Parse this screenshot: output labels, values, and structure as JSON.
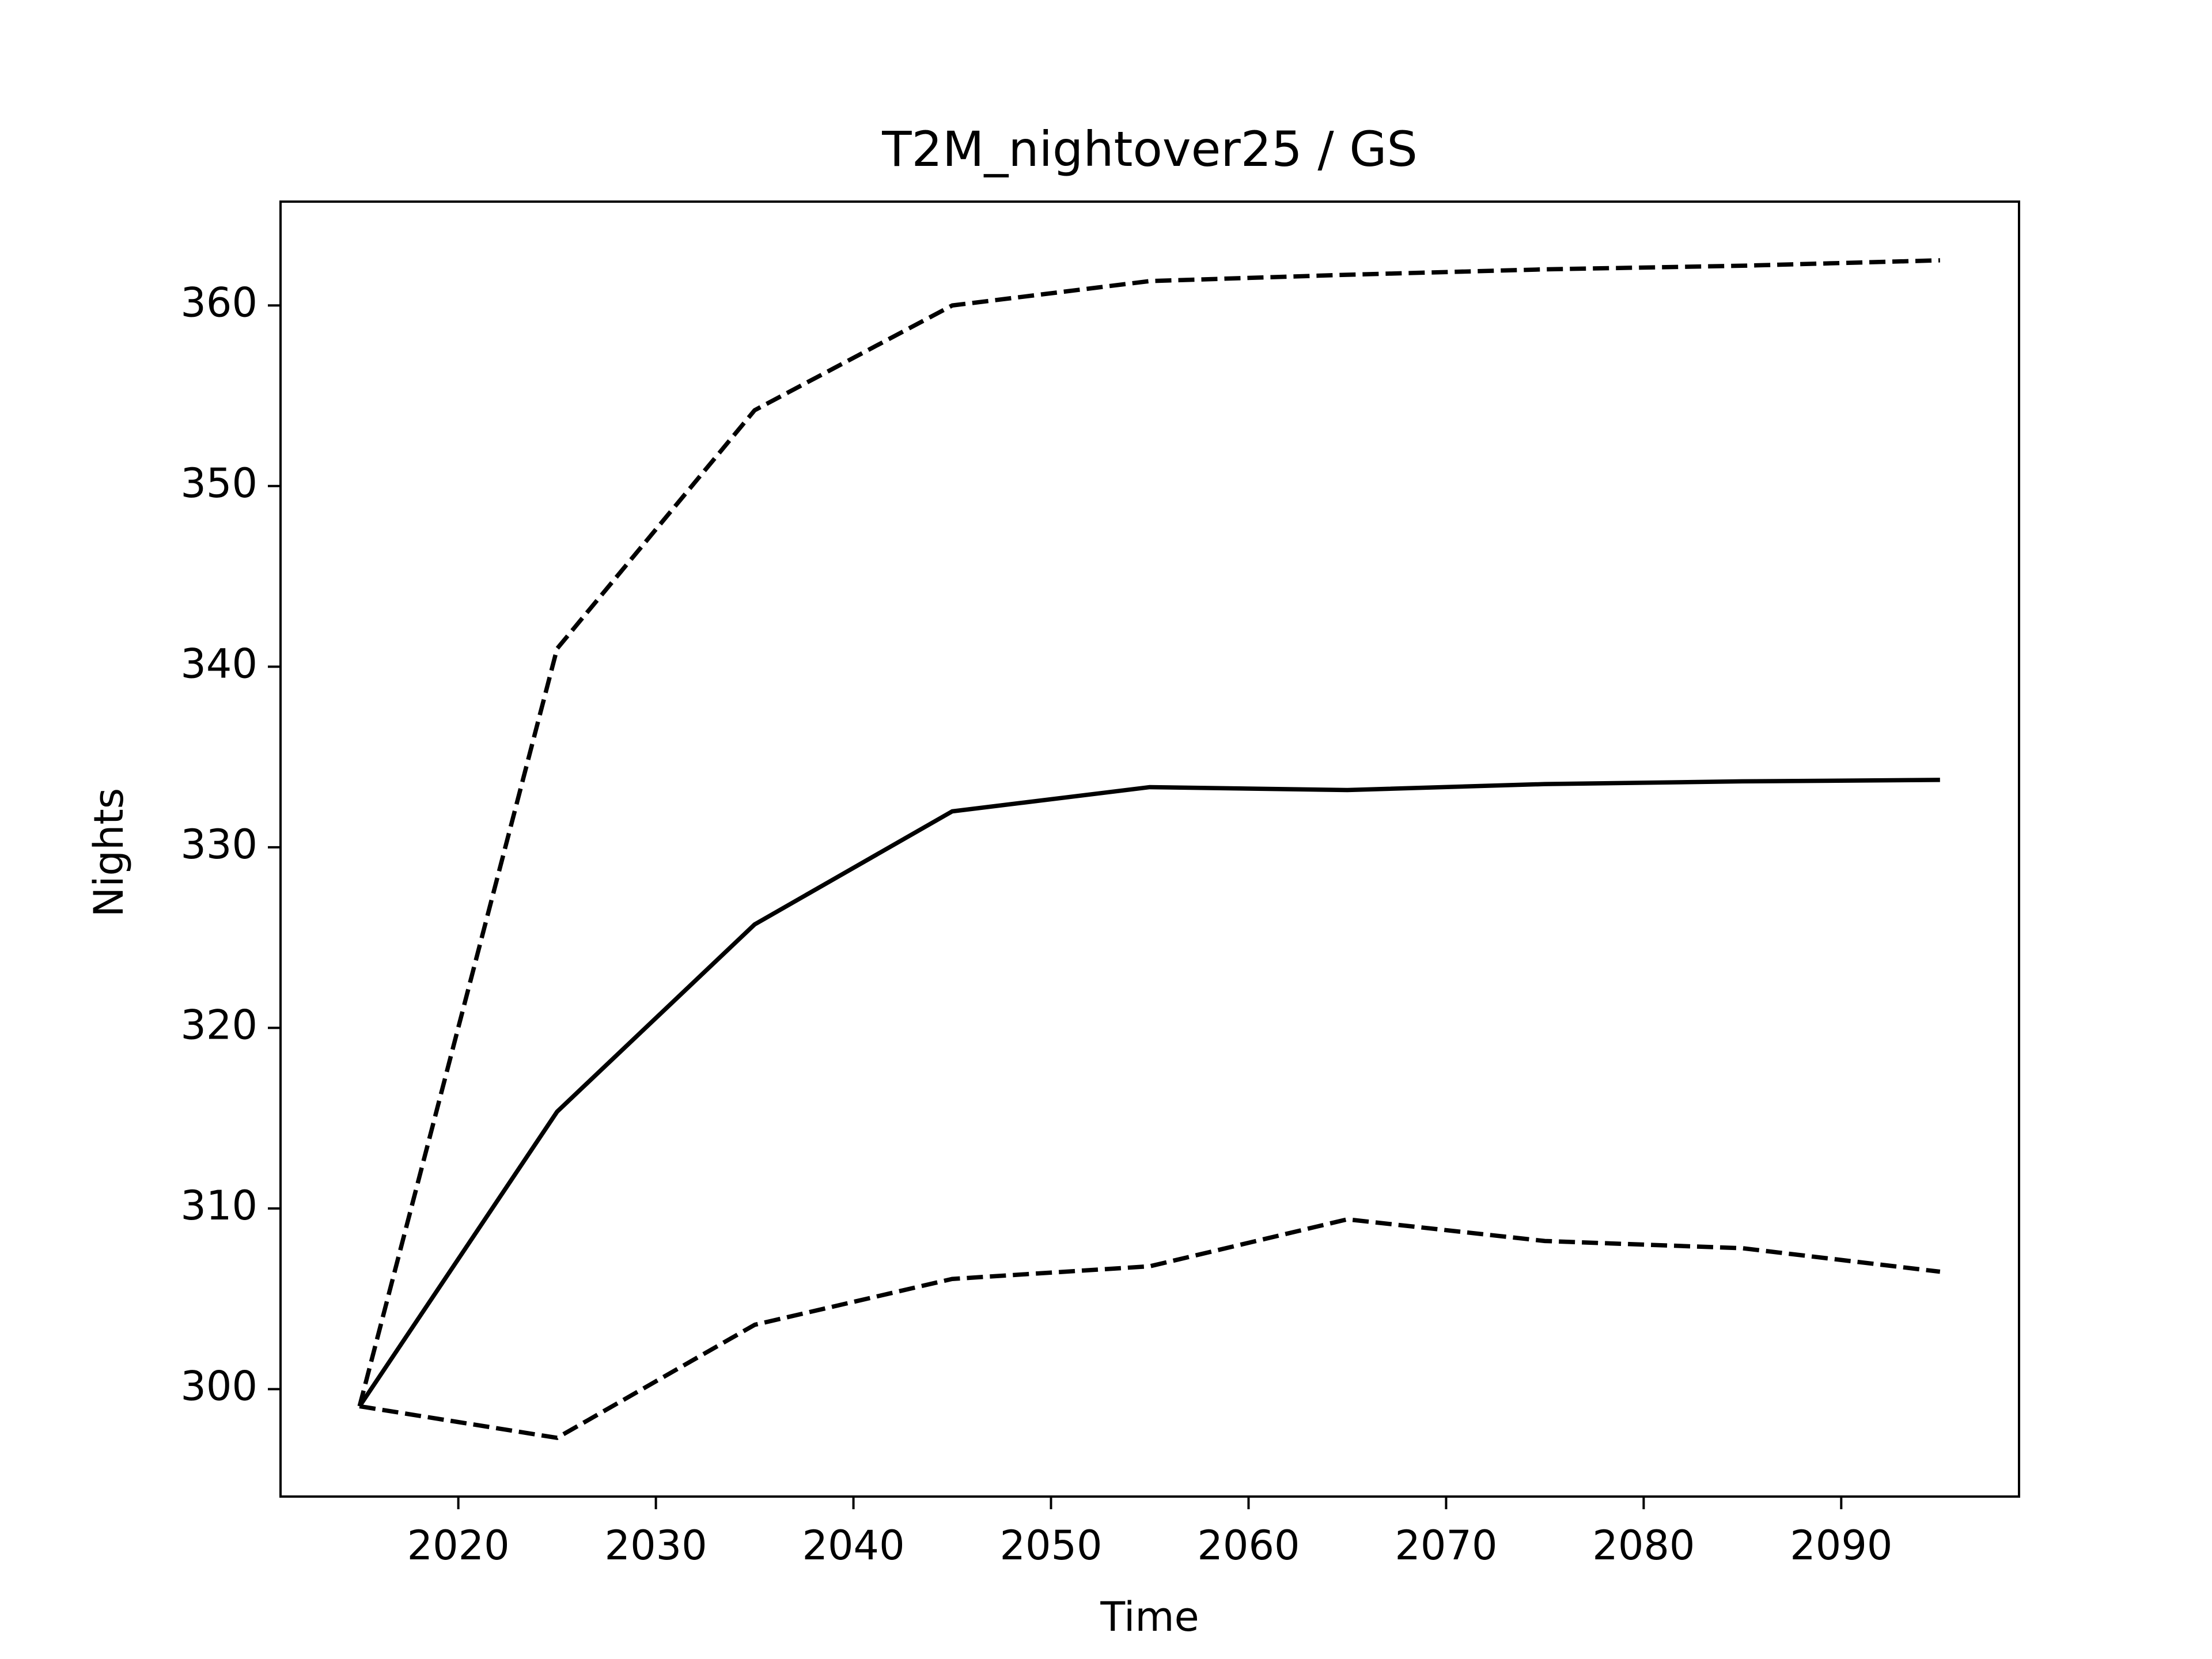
{
  "chart_data": {
    "type": "line",
    "title": "T2M_nightover25 / GS",
    "x_label": "Time",
    "y_label": "Nights",
    "x": [
      2015,
      2025,
      2035,
      2045,
      2055,
      2065,
      2075,
      2085,
      2095
    ],
    "series": [
      {
        "color": "#000000",
        "style": "dashed",
        "values": [
          299.05,
          341.0,
          354.2,
          360.0,
          361.35,
          361.7,
          362.0,
          362.2,
          362.5
        ]
      },
      {
        "color": "#000000",
        "style": "solid",
        "values": [
          299.05,
          315.36,
          325.73,
          331.99,
          333.33,
          333.17,
          333.5,
          333.65,
          333.73
        ]
      },
      {
        "color": "#000000",
        "style": "dashed",
        "values": [
          299.05,
          297.3,
          303.56,
          306.1,
          306.8,
          309.4,
          308.2,
          307.8,
          306.5
        ]
      }
    ],
    "xlim": [
      2011,
      2099
    ],
    "ylim": [
      294.05,
      365.75
    ],
    "xticks": [
      2020,
      2030,
      2040,
      2050,
      2060,
      2070,
      2080,
      2090
    ],
    "yticks": [
      300,
      310,
      320,
      330,
      340,
      350,
      360
    ]
  }
}
